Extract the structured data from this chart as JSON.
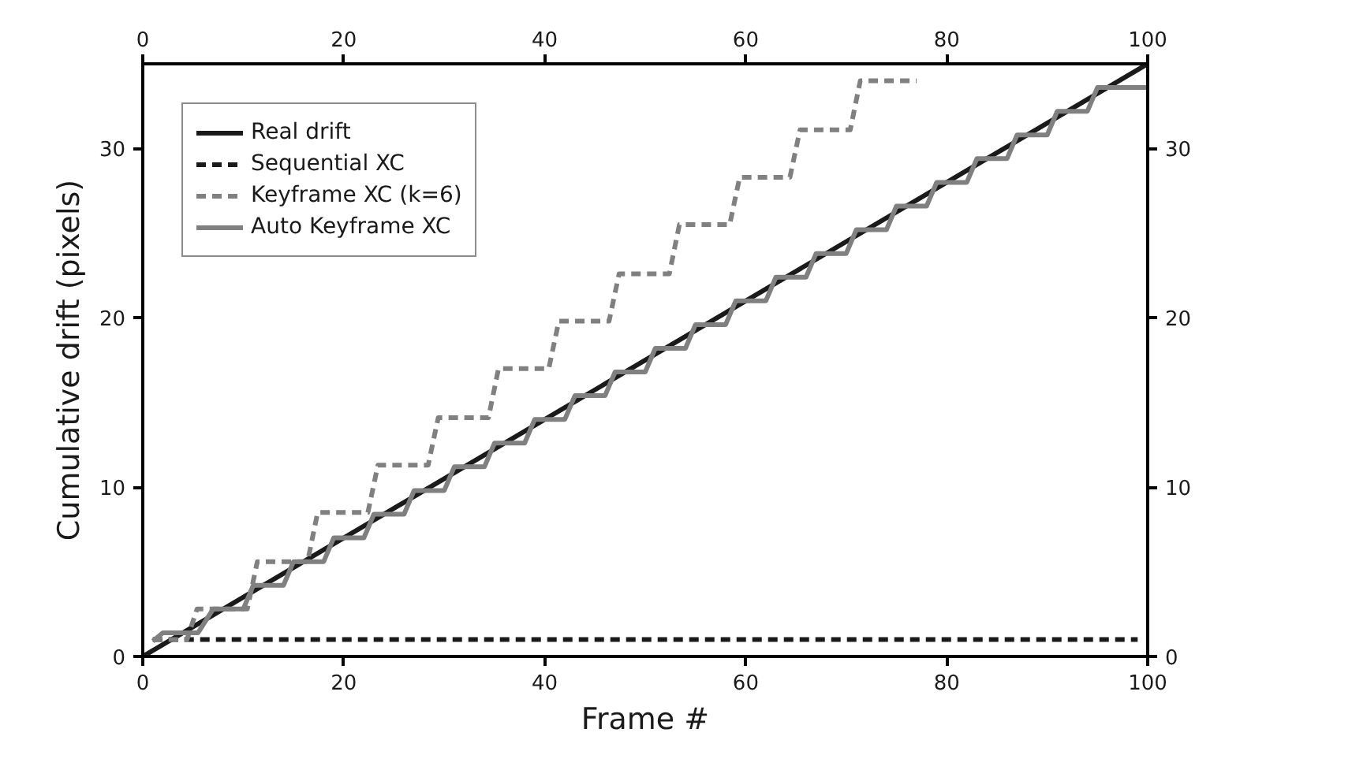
{
  "chart_data": {
    "type": "line",
    "xlabel": "Frame #",
    "ylabel": "Cumulative drift (pixels)",
    "xlim": [
      0,
      100
    ],
    "xticks": [
      0,
      20,
      40,
      60,
      80,
      100
    ],
    "x2lim": [
      0,
      100
    ],
    "x2ticks": [
      0,
      20,
      40,
      60,
      80,
      100
    ],
    "ylim": [
      0,
      35
    ],
    "yticks": [
      0,
      10,
      20,
      30
    ],
    "y2lim": [
      0,
      35
    ],
    "y2ticks": [
      0,
      10,
      20,
      30
    ],
    "grid": false,
    "legend": "top left",
    "marker": "none",
    "series": [
      {
        "name": "Real drift",
        "color": "#1a1a1a",
        "line_style": "solid",
        "x": [
          0,
          100
        ],
        "values": [
          0,
          35
        ]
      },
      {
        "name": "Sequential XC",
        "color": "#1a1a1a",
        "line_style": "dashed",
        "x": [
          1,
          99
        ],
        "values": [
          1,
          1
        ]
      },
      {
        "name": "Keyframe XC (k=6)",
        "color": "#808080",
        "line_style": "dashed",
        "x": [
          1,
          4.4,
          5.4,
          10.4,
          11.4,
          16.4,
          17.4,
          22.4,
          23.4,
          28.4,
          29.4,
          34.4,
          35.4,
          40.4,
          41.4,
          46.4,
          47.4,
          52.4,
          53.4,
          58.4,
          59.4,
          64.4,
          65.4,
          70.4,
          71.4,
          77
        ],
        "values": [
          1,
          1,
          2.8,
          2.8,
          5.6,
          5.6,
          8.5,
          8.5,
          11.3,
          11.3,
          14.1,
          14.1,
          17,
          17,
          19.8,
          19.8,
          22.6,
          22.6,
          25.5,
          25.5,
          28.3,
          28.3,
          31.1,
          31.1,
          34,
          34
        ]
      },
      {
        "name": "Auto Keyframe XC",
        "color": "#808080",
        "line_style": "solid",
        "x": [
          1,
          2,
          5.5,
          7,
          10,
          11,
          14,
          15,
          18,
          19,
          22,
          23,
          26,
          27,
          30,
          31,
          34,
          35,
          38,
          39,
          42,
          43,
          46,
          47,
          50,
          51,
          54,
          55,
          58,
          59,
          62,
          63,
          66,
          67,
          70,
          71,
          74,
          75,
          78,
          79,
          82,
          83,
          86,
          87,
          90,
          91,
          94,
          95,
          100
        ],
        "values": [
          0.9,
          1.4,
          1.4,
          2.8,
          2.8,
          4.2,
          4.2,
          5.6,
          5.6,
          7,
          7,
          8.4,
          8.4,
          9.8,
          9.8,
          11.2,
          11.2,
          12.6,
          12.6,
          14,
          14,
          15.4,
          15.4,
          16.8,
          16.8,
          18.2,
          18.2,
          19.6,
          19.6,
          21,
          21,
          22.4,
          22.4,
          23.8,
          23.8,
          25.2,
          25.2,
          26.6,
          26.6,
          28,
          28,
          29.4,
          29.4,
          30.8,
          30.8,
          32.2,
          32.2,
          33.6,
          33.6
        ]
      }
    ]
  }
}
